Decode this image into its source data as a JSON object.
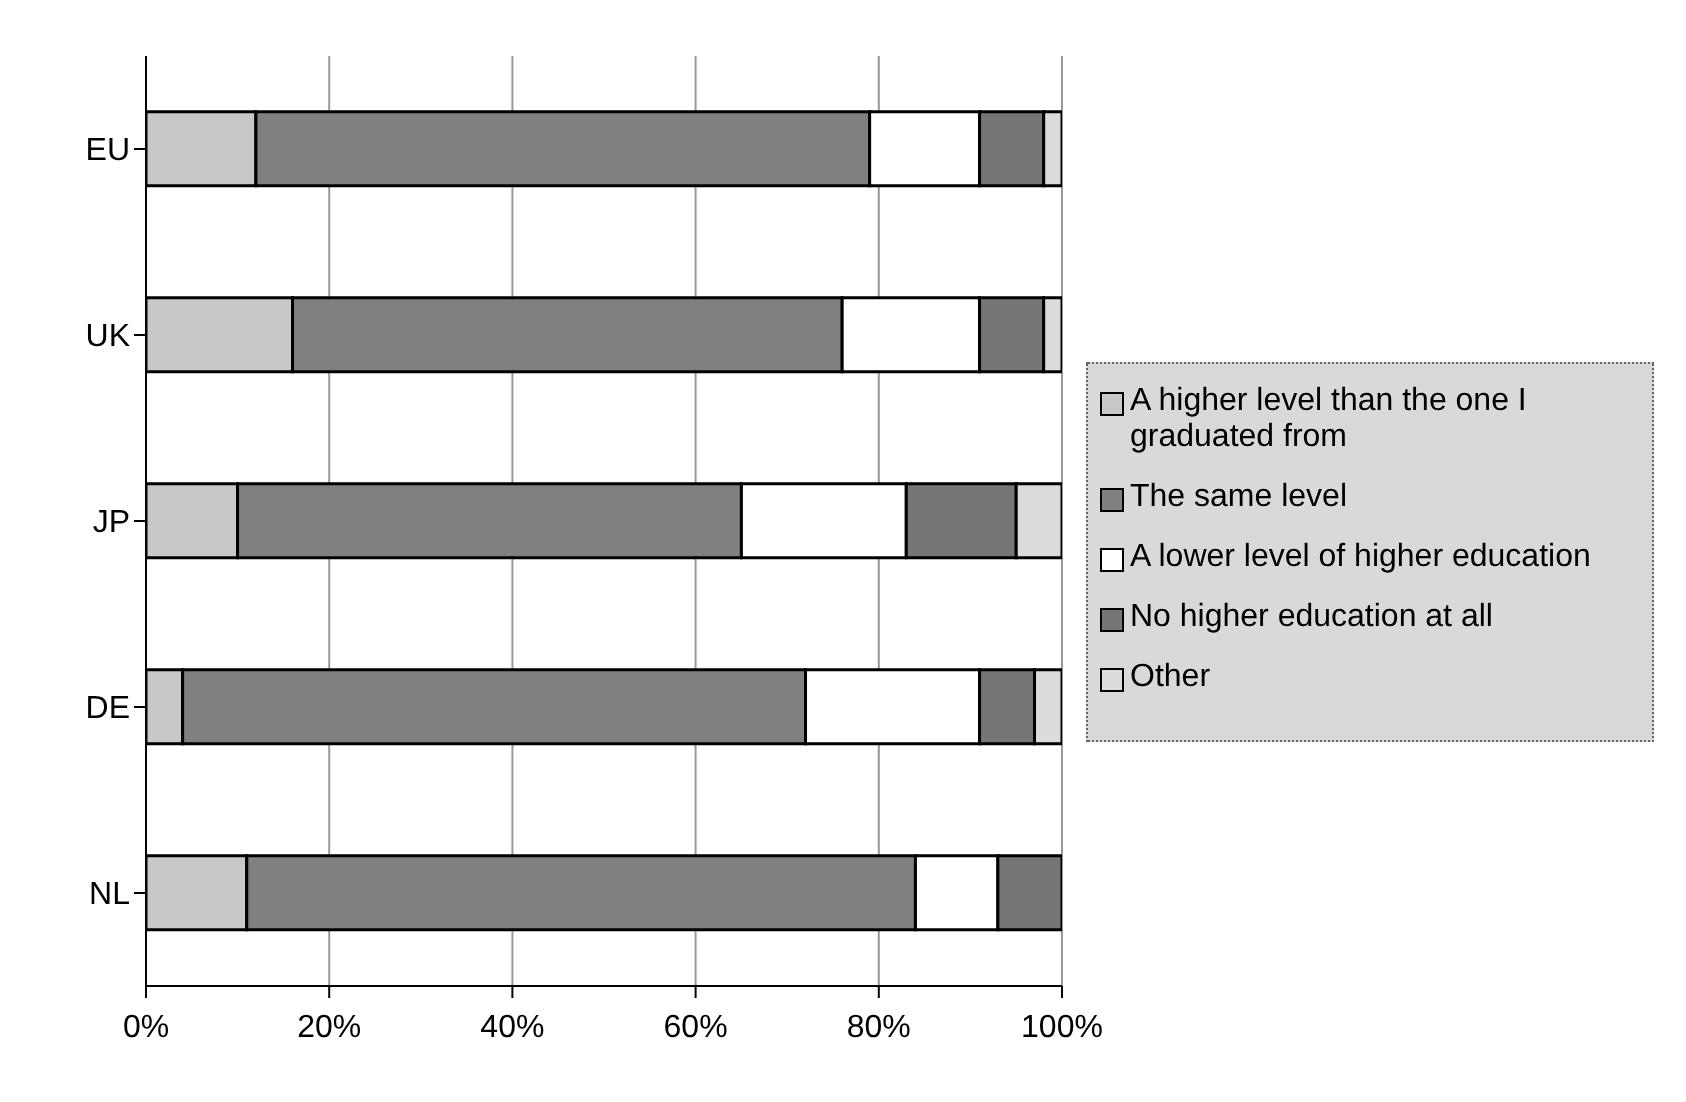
{
  "chart_data": {
    "type": "bar",
    "orientation": "horizontal",
    "stacked": true,
    "categories": [
      "EU",
      "UK",
      "JP",
      "DE",
      "NL"
    ],
    "series": [
      {
        "name": "A higher level than the one I graduated from",
        "color": "#c8c8c8",
        "values": [
          12,
          16,
          10,
          4,
          11
        ]
      },
      {
        "name": "The same level",
        "color": "#808080",
        "values": [
          67,
          60,
          55,
          68,
          73
        ]
      },
      {
        "name": "A lower level of higher education",
        "color": "#ffffff",
        "values": [
          12,
          15,
          18,
          19,
          9
        ]
      },
      {
        "name": "No higher education at all",
        "color": "#767676",
        "values": [
          7,
          7,
          12,
          6,
          7
        ]
      },
      {
        "name": "Other",
        "color": "#dcdcdc",
        "values": [
          2,
          2,
          5,
          3,
          0
        ]
      }
    ],
    "xlim": [
      0,
      100
    ],
    "xticks": [
      {
        "value": 0,
        "label": "0%"
      },
      {
        "value": 20,
        "label": "20%"
      },
      {
        "value": 40,
        "label": "40%"
      },
      {
        "value": 60,
        "label": "60%"
      },
      {
        "value": 80,
        "label": "80%"
      },
      {
        "value": 100,
        "label": "100%"
      }
    ],
    "grid": "x",
    "legend": "right"
  }
}
